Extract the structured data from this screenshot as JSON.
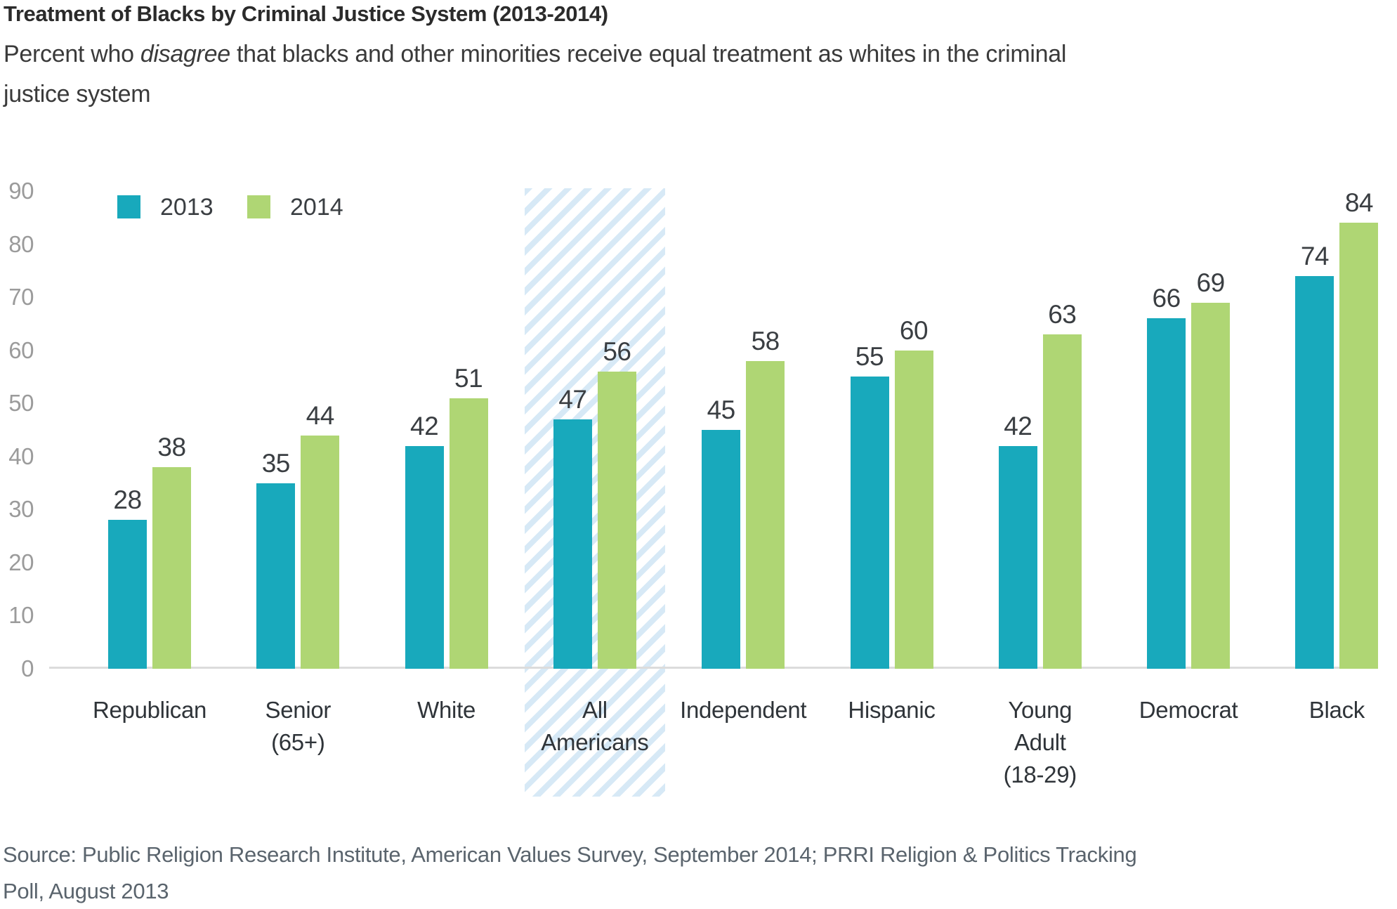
{
  "header": {
    "title": "Treatment of Blacks by Criminal Justice System (2013-2014)",
    "subtitle_prefix": "Percent who ",
    "subtitle_emphasis": "disagree",
    "subtitle_suffix": " that blacks and other minorities receive equal treatment as whites in the criminal justice system"
  },
  "chart_data": {
    "type": "bar",
    "title": "Treatment of Blacks by Criminal Justice System (2013-2014)",
    "categories": [
      "Republican",
      "Senior (65+)",
      "White",
      "All Americans",
      "Independent",
      "Hispanic",
      "Young Adult (18-29)",
      "Democrat",
      "Black"
    ],
    "series": [
      {
        "name": "2013",
        "color": "#18A9BC",
        "values": [
          28,
          35,
          42,
          47,
          45,
          55,
          42,
          66,
          74
        ]
      },
      {
        "name": "2014",
        "color": "#AFD674",
        "values": [
          38,
          44,
          51,
          56,
          58,
          60,
          63,
          69,
          84
        ]
      }
    ],
    "ylim": [
      0,
      90
    ],
    "yticks": [
      0,
      10,
      20,
      30,
      40,
      50,
      60,
      70,
      80,
      90
    ],
    "grid": false,
    "legend_position": "top-left",
    "highlighted_category": "All Americans",
    "value_labels": true
  },
  "colors": {
    "highlight_stripe": "#D7E9F6",
    "axis_line": "#DCDCDC",
    "tick_label": "#9B9B9B",
    "value_label": "#3A3E42",
    "x_label": "#2F3439",
    "title": "#2B2B2B",
    "subtitle": "#3A3A3A",
    "source": "#5A646D"
  },
  "source": {
    "lines": [
      "Source: Public Religion Research Institute, American Values Survey, September 2014; PRRI Religion & Politics Tracking",
      "Poll, August 2013"
    ]
  }
}
